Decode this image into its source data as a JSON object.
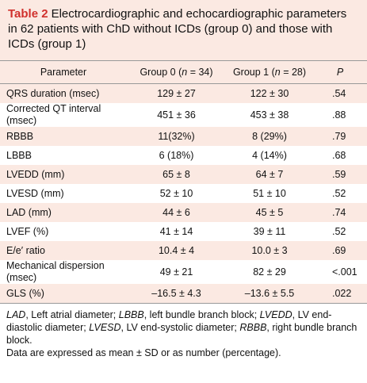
{
  "caption": {
    "label": "Table 2",
    "text": "Electrocardiographic and echocardiographic parameters in 62 patients with ChD without ICDs (group 0) and those with ICDs (group 1)"
  },
  "table": {
    "header": [
      {
        "parts": [
          "Parameter"
        ]
      },
      {
        "parts": [
          "Group 0 (",
          "n",
          " = 34)"
        ]
      },
      {
        "parts": [
          "Group 1 (",
          "n",
          " = 28)"
        ]
      },
      {
        "parts": [
          "",
          "P",
          ""
        ]
      }
    ],
    "rows": [
      [
        "QRS duration (msec)",
        "129 ± 27",
        "122 ± 30",
        ".54"
      ],
      [
        "Corrected QT interval (msec)",
        "451 ± 36",
        "453 ± 38",
        ".88"
      ],
      [
        "RBBB",
        "11(32%)",
        "8 (29%)",
        ".79"
      ],
      [
        "LBBB",
        "6 (18%)",
        "4 (14%)",
        ".68"
      ],
      [
        "LVEDD (mm)",
        "65 ± 8",
        "64 ± 7",
        ".59"
      ],
      [
        "LVESD (mm)",
        "52 ± 10",
        "51 ± 10",
        ".52"
      ],
      [
        "LAD (mm)",
        "44 ± 6",
        "45 ± 5",
        ".74"
      ],
      [
        "LVEF (%)",
        "41 ± 14",
        "39 ± 11",
        ".52"
      ],
      [
        "E/e′ ratio",
        "10.4 ± 4",
        "10.0 ± 3",
        ".69"
      ],
      [
        "Mechanical dispersion (msec)",
        "49 ± 21",
        "82 ± 29",
        "<.001"
      ],
      [
        "GLS (%)",
        "–16.5 ± 4.3",
        "–13.6 ± 5.5",
        ".022"
      ]
    ]
  },
  "footnote": {
    "abbreviations": [
      {
        "term": "LAD",
        "text": ", Left atrial diameter; "
      },
      {
        "term": "LBBB",
        "text": ", left bundle branch block; "
      },
      {
        "term": "LVEDD",
        "text": ", LV end-diastolic diameter; "
      },
      {
        "term": "LVESD",
        "text": ", LV end-systolic diameter; "
      },
      {
        "term": "RBBB",
        "text": ", right bundle branch block."
      }
    ],
    "note": "Data are expressed as mean ± SD or as number (percentage)."
  }
}
